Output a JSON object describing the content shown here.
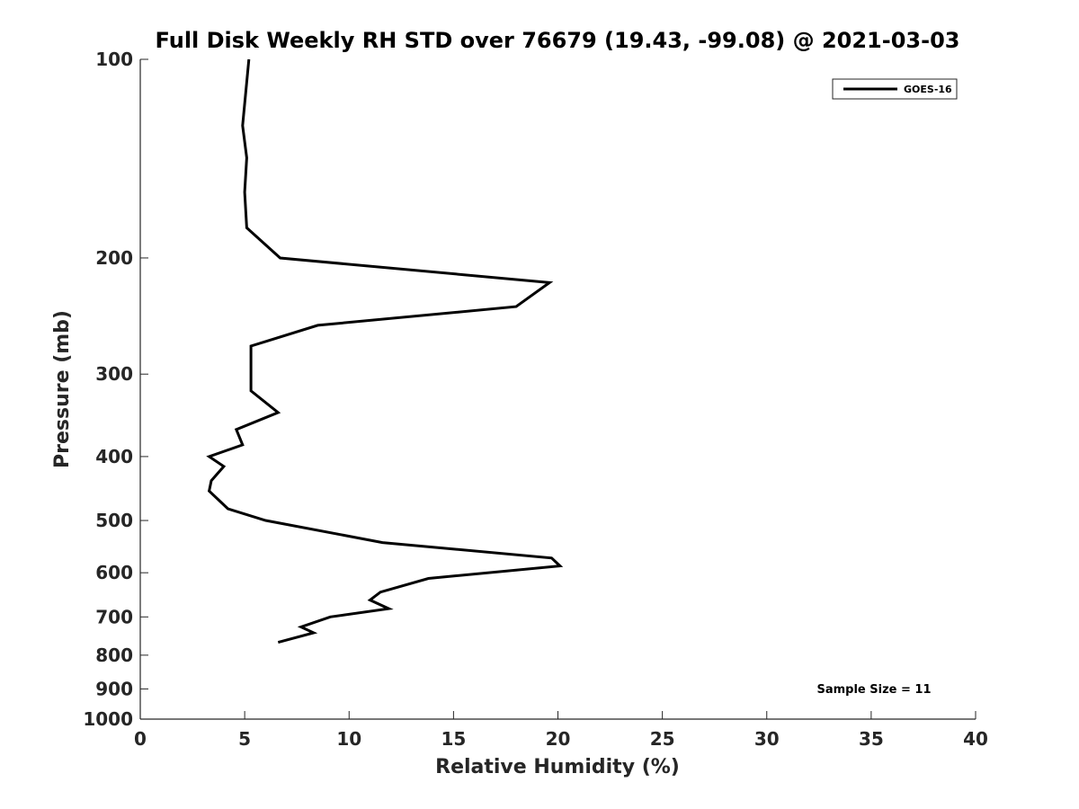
{
  "chart_data": {
    "type": "line",
    "title": "Full Disk Weekly RH STD over 76679 (19.43, -99.08) @ 2021-03-03",
    "xlabel": "Relative Humidity (%)",
    "ylabel": "Pressure (mb)",
    "xlim": [
      0,
      40
    ],
    "ylim": [
      100,
      1000
    ],
    "yscale": "log",
    "ydirection": "reversed",
    "x_ticks": [
      0,
      5,
      10,
      15,
      20,
      25,
      30,
      35,
      40
    ],
    "x_tick_labels": [
      "0",
      "5",
      "10",
      "15",
      "20",
      "25",
      "30",
      "35",
      "40"
    ],
    "y_ticks": [
      100,
      200,
      300,
      400,
      500,
      600,
      700,
      800,
      900,
      1000
    ],
    "y_tick_labels": [
      "100",
      "200",
      "300",
      "400",
      "500",
      "600",
      "700",
      "800",
      "900",
      "1000"
    ],
    "grid": false,
    "legend_position": "top-right",
    "series": [
      {
        "name": "GOES-16",
        "color": "#000000",
        "points": [
          {
            "p": 100,
            "rh": 5.2
          },
          {
            "p": 126,
            "rh": 4.9
          },
          {
            "p": 141,
            "rh": 5.1
          },
          {
            "p": 159,
            "rh": 5.0
          },
          {
            "p": 180,
            "rh": 5.1
          },
          {
            "p": 200,
            "rh": 6.7
          },
          {
            "p": 218,
            "rh": 19.6
          },
          {
            "p": 237,
            "rh": 18.0
          },
          {
            "p": 253,
            "rh": 8.5
          },
          {
            "p": 272,
            "rh": 5.3
          },
          {
            "p": 300,
            "rh": 5.3
          },
          {
            "p": 318,
            "rh": 5.3
          },
          {
            "p": 343,
            "rh": 6.6
          },
          {
            "p": 364,
            "rh": 4.6
          },
          {
            "p": 384,
            "rh": 4.9
          },
          {
            "p": 400,
            "rh": 3.3
          },
          {
            "p": 414,
            "rh": 4.0
          },
          {
            "p": 435,
            "rh": 3.4
          },
          {
            "p": 451,
            "rh": 3.3
          },
          {
            "p": 480,
            "rh": 4.2
          },
          {
            "p": 500,
            "rh": 6.0
          },
          {
            "p": 540,
            "rh": 11.6
          },
          {
            "p": 570,
            "rh": 19.7
          },
          {
            "p": 586,
            "rh": 20.1
          },
          {
            "p": 612,
            "rh": 13.8
          },
          {
            "p": 642,
            "rh": 11.5
          },
          {
            "p": 660,
            "rh": 11.0
          },
          {
            "p": 680,
            "rh": 11.9
          },
          {
            "p": 700,
            "rh": 9.1
          },
          {
            "p": 725,
            "rh": 7.7
          },
          {
            "p": 740,
            "rh": 8.3
          },
          {
            "p": 765,
            "rh": 6.6
          }
        ]
      }
    ],
    "annotation": "Sample Size = 11"
  }
}
